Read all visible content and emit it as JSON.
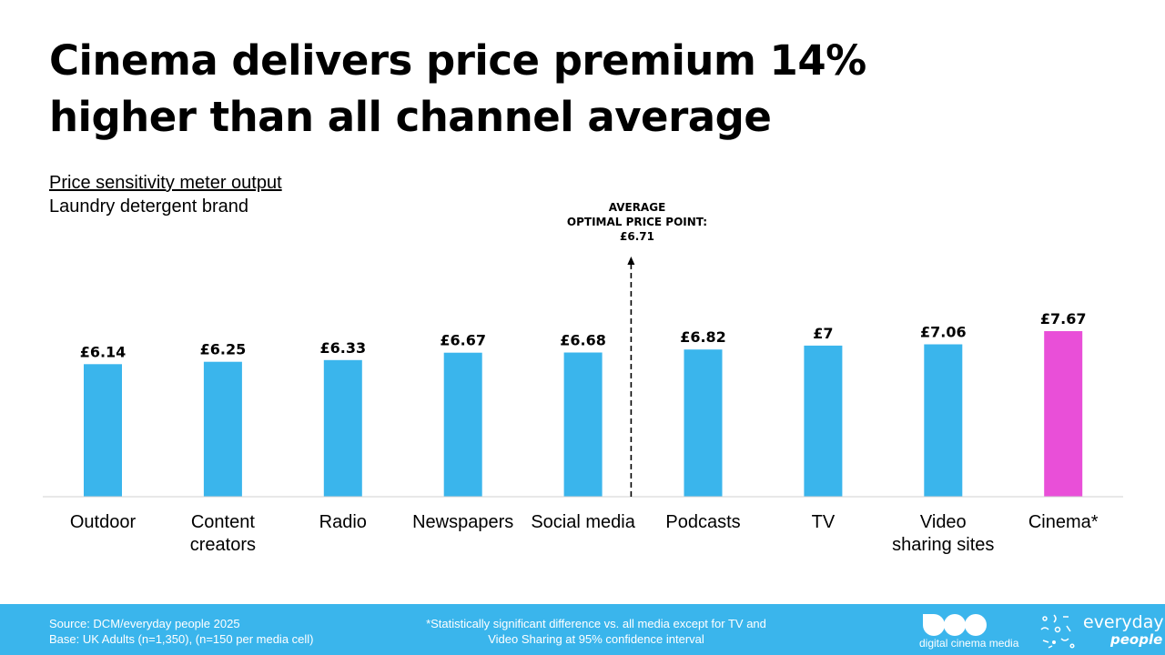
{
  "title": {
    "line1": "Cinema delivers price premium 14%",
    "line2": "higher than all channel average"
  },
  "subtitle": {
    "line1": "Price sensitivity meter output",
    "line2": "Laundry detergent brand"
  },
  "average_label": {
    "line1": "AVERAGE",
    "line2": "OPTIMAL PRICE POINT:",
    "line3": "£6.71"
  },
  "colors": {
    "bar": "#3ab5ec",
    "highlight": "#e94fd8",
    "footer": "#3ab5ec"
  },
  "chart_data": {
    "type": "bar",
    "categories": [
      "Outdoor",
      "Content\ncreators",
      "Radio",
      "Newspapers",
      "Social media",
      "Podcasts",
      "TV",
      "Video\nsharing sites",
      "Cinema*"
    ],
    "values": [
      6.14,
      6.25,
      6.33,
      6.67,
      6.68,
      6.82,
      7.0,
      7.06,
      7.67
    ],
    "data_labels": [
      "£6.14",
      "£6.25",
      "£6.33",
      "£6.67",
      "£6.68",
      "£6.82",
      "£7",
      "£7.06",
      "£7.67"
    ],
    "highlight_index": 8,
    "reference_line": {
      "value": 6.71
    },
    "ylim": [
      0,
      7.67
    ],
    "grid": false,
    "legend": "none"
  },
  "footer": {
    "source_line1": "Source: DCM/everyday people 2025",
    "source_line2": "Base: UK Adults (n=1,350), (n=150 per media cell)",
    "note_line1": "*Statistically significant difference vs. all media except for TV and",
    "note_line2": "Video Sharing at 95% confidence interval",
    "dcm_logo_text": "digital cinema media",
    "ep_logo_word1": "everyday",
    "ep_logo_word2": "people"
  }
}
